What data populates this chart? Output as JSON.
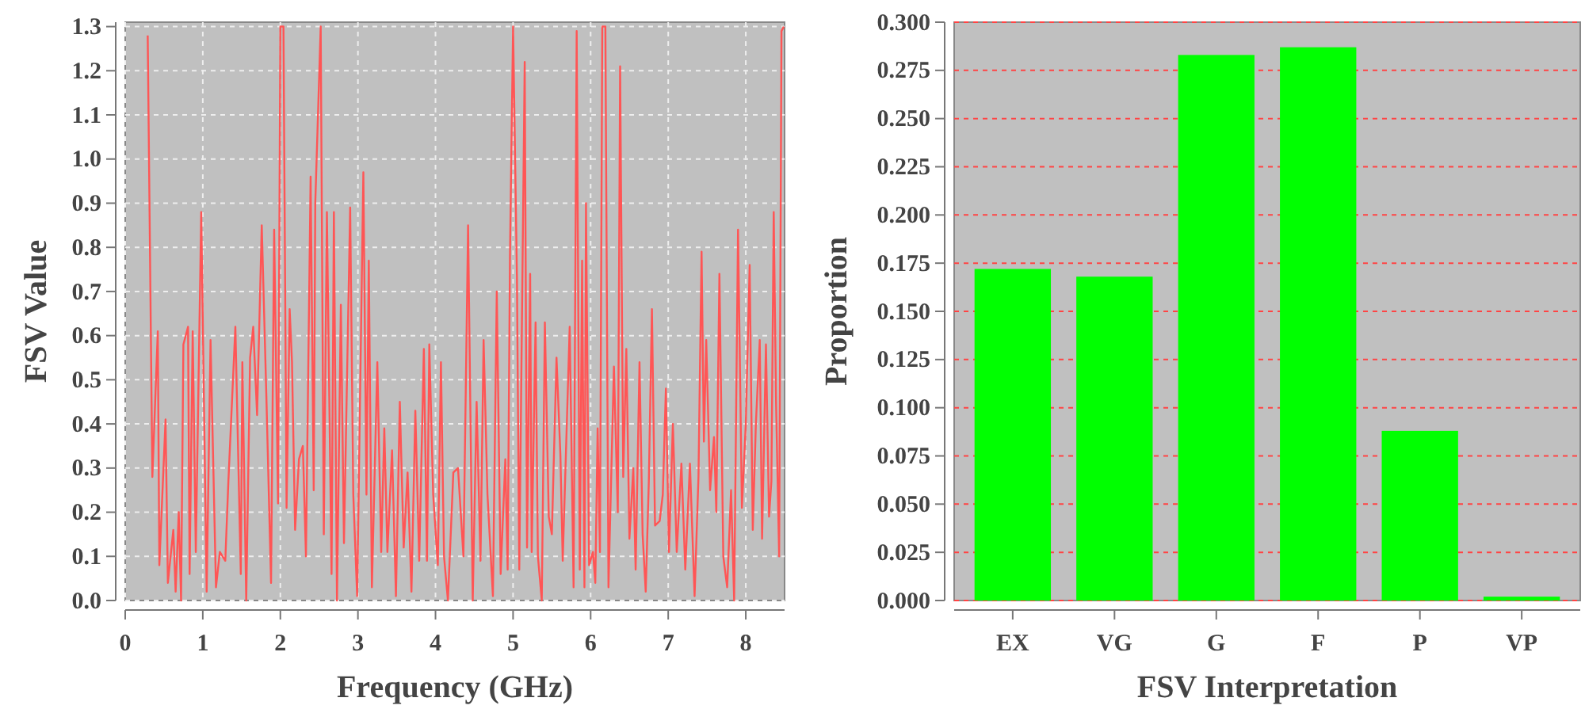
{
  "chart_data": [
    {
      "type": "line",
      "xlabel": "Frequency (GHz)",
      "ylabel": "FSV Value",
      "grid": true,
      "xlim": [
        0,
        8.5
      ],
      "xticks": [
        0,
        1,
        2,
        3,
        4,
        5,
        6,
        7,
        8
      ],
      "ylim": [
        0,
        1.31
      ],
      "yticks": [
        {
          "value": 0,
          "label": "0.0"
        },
        0.1,
        0.2,
        0.3,
        0.4,
        0.5,
        0.6,
        0.7,
        0.8,
        0.9,
        {
          "value": 1,
          "label": "1.0"
        },
        1.1,
        1.2,
        1.3
      ],
      "series": [
        {
          "color": "#ff5555",
          "x": [
            0.29,
            0.35,
            0.42,
            0.44,
            0.52,
            0.55,
            0.62,
            0.65,
            0.69,
            0.72,
            0.75,
            0.81,
            0.83,
            0.87,
            0.91,
            0.98,
            1.05,
            1.1,
            1.17,
            1.22,
            1.29,
            1.33,
            1.42,
            1.49,
            1.51,
            1.56,
            1.61,
            1.65,
            1.7,
            1.76,
            1.82,
            1.88,
            1.92,
            1.97,
            2.0,
            2.04,
            2.08,
            2.12,
            2.15,
            2.19,
            2.24,
            2.29,
            2.33,
            2.39,
            2.43,
            2.45,
            2.52,
            2.56,
            2.6,
            2.66,
            2.69,
            2.73,
            2.78,
            2.82,
            2.9,
            2.94,
            2.99,
            3.07,
            3.11,
            3.14,
            3.18,
            3.25,
            3.3,
            3.34,
            3.38,
            3.44,
            3.49,
            3.54,
            3.59,
            3.64,
            3.69,
            3.74,
            3.79,
            3.85,
            3.89,
            3.92,
            3.97,
            4.03,
            4.07,
            4.11,
            4.16,
            4.23,
            4.29,
            4.36,
            4.42,
            4.48,
            4.53,
            4.58,
            4.62,
            4.67,
            4.74,
            4.79,
            4.84,
            4.9,
            4.93,
            4.96,
            5.0,
            5.05,
            5.08,
            5.15,
            5.18,
            5.22,
            5.24,
            5.29,
            5.32,
            5.37,
            5.41,
            5.46,
            5.5,
            5.56,
            5.61,
            5.64,
            5.73,
            5.78,
            5.82,
            5.86,
            5.89,
            5.92,
            5.94,
            5.98,
            6.03,
            6.06,
            6.09,
            6.12,
            6.15,
            6.19,
            6.23,
            6.3,
            6.35,
            6.38,
            6.42,
            6.46,
            6.5,
            6.55,
            6.58,
            6.63,
            6.67,
            6.71,
            6.75,
            6.79,
            6.83,
            6.89,
            6.93,
            6.97,
            7.01,
            7.06,
            7.11,
            7.17,
            7.22,
            7.28,
            7.34,
            7.39,
            7.43,
            7.46,
            7.49,
            7.54,
            7.59,
            7.62,
            7.66,
            7.71,
            7.76,
            7.81,
            7.85,
            7.9,
            7.95,
            8.0,
            8.05,
            8.09,
            8.13,
            8.18,
            8.21,
            8.26,
            8.3,
            8.33,
            8.36,
            8.39,
            8.43,
            8.46,
            8.49
          ],
          "values": [
            1.28,
            0.28,
            0.61,
            0.08,
            0.41,
            0.04,
            0.16,
            0.02,
            0.2,
            0.0,
            0.58,
            0.62,
            0.06,
            0.61,
            0.11,
            0.88,
            0.02,
            0.59,
            0.03,
            0.11,
            0.09,
            0.27,
            0.62,
            0.06,
            0.54,
            0.0,
            0.55,
            0.62,
            0.42,
            0.85,
            0.46,
            0.04,
            0.84,
            0.22,
            1.3,
            1.3,
            0.21,
            0.66,
            0.54,
            0.16,
            0.32,
            0.35,
            0.1,
            0.96,
            0.25,
            0.9,
            1.3,
            0.15,
            0.88,
            0.06,
            0.88,
            0.0,
            0.67,
            0.13,
            0.89,
            0.24,
            0.01,
            0.97,
            0.24,
            0.77,
            0.03,
            0.54,
            0.11,
            0.39,
            0.11,
            0.34,
            0.01,
            0.45,
            0.12,
            0.29,
            0.02,
            0.43,
            0.09,
            0.57,
            0.09,
            0.58,
            0.24,
            0.08,
            0.54,
            0.1,
            0.0,
            0.29,
            0.3,
            0.1,
            0.85,
            0.0,
            0.45,
            0.09,
            0.59,
            0.24,
            0.01,
            0.7,
            0.06,
            0.32,
            0.07,
            0.78,
            1.3,
            0.73,
            0.07,
            1.22,
            0.12,
            0.74,
            0.11,
            0.63,
            0.1,
            0.0,
            0.63,
            0.19,
            0.15,
            0.55,
            0.33,
            0.09,
            0.62,
            0.03,
            1.29,
            0.07,
            0.77,
            0.03,
            0.9,
            0.08,
            0.11,
            0.04,
            0.39,
            0.11,
            1.3,
            1.3,
            0.03,
            0.53,
            0.2,
            1.21,
            0.28,
            0.57,
            0.14,
            0.3,
            0.07,
            0.54,
            0.15,
            0.02,
            0.27,
            0.66,
            0.17,
            0.18,
            0.24,
            0.48,
            0.11,
            0.4,
            0.11,
            0.31,
            0.07,
            0.31,
            0.01,
            0.28,
            0.79,
            0.36,
            0.59,
            0.25,
            0.37,
            0.2,
            0.74,
            0.1,
            0.03,
            0.25,
            0.0,
            0.84,
            0.21,
            0.4,
            0.76,
            0.16,
            0.4,
            0.59,
            0.14,
            0.58,
            0.19,
            0.27,
            0.88,
            0.45,
            0.1,
            1.29,
            1.3
          ]
        }
      ]
    },
    {
      "type": "bar",
      "xlabel": "FSV Interpretation",
      "ylabel": "Proportion",
      "grid": "y",
      "categories": [
        "EX",
        "VG",
        "G",
        "F",
        "P",
        "VP"
      ],
      "ylim": [
        0,
        0.3
      ],
      "yticks": [
        {
          "value": 0,
          "label": "0.000"
        },
        {
          "value": 0.025,
          "label": "0.025"
        },
        {
          "value": 0.05,
          "label": "0.050"
        },
        {
          "value": 0.075,
          "label": "0.075"
        },
        {
          "value": 0.1,
          "label": "0.100"
        },
        {
          "value": 0.125,
          "label": "0.125"
        },
        {
          "value": 0.15,
          "label": "0.150"
        },
        {
          "value": 0.175,
          "label": "0.175"
        },
        {
          "value": 0.2,
          "label": "0.200"
        },
        {
          "value": 0.225,
          "label": "0.225"
        },
        {
          "value": 0.25,
          "label": "0.250"
        },
        {
          "value": 0.275,
          "label": "0.275"
        },
        {
          "value": 0.3,
          "label": "0.300"
        }
      ],
      "series": [
        {
          "color": "#00ff00",
          "values": [
            0.172,
            0.168,
            0.283,
            0.287,
            0.088,
            0.002
          ]
        }
      ]
    }
  ]
}
